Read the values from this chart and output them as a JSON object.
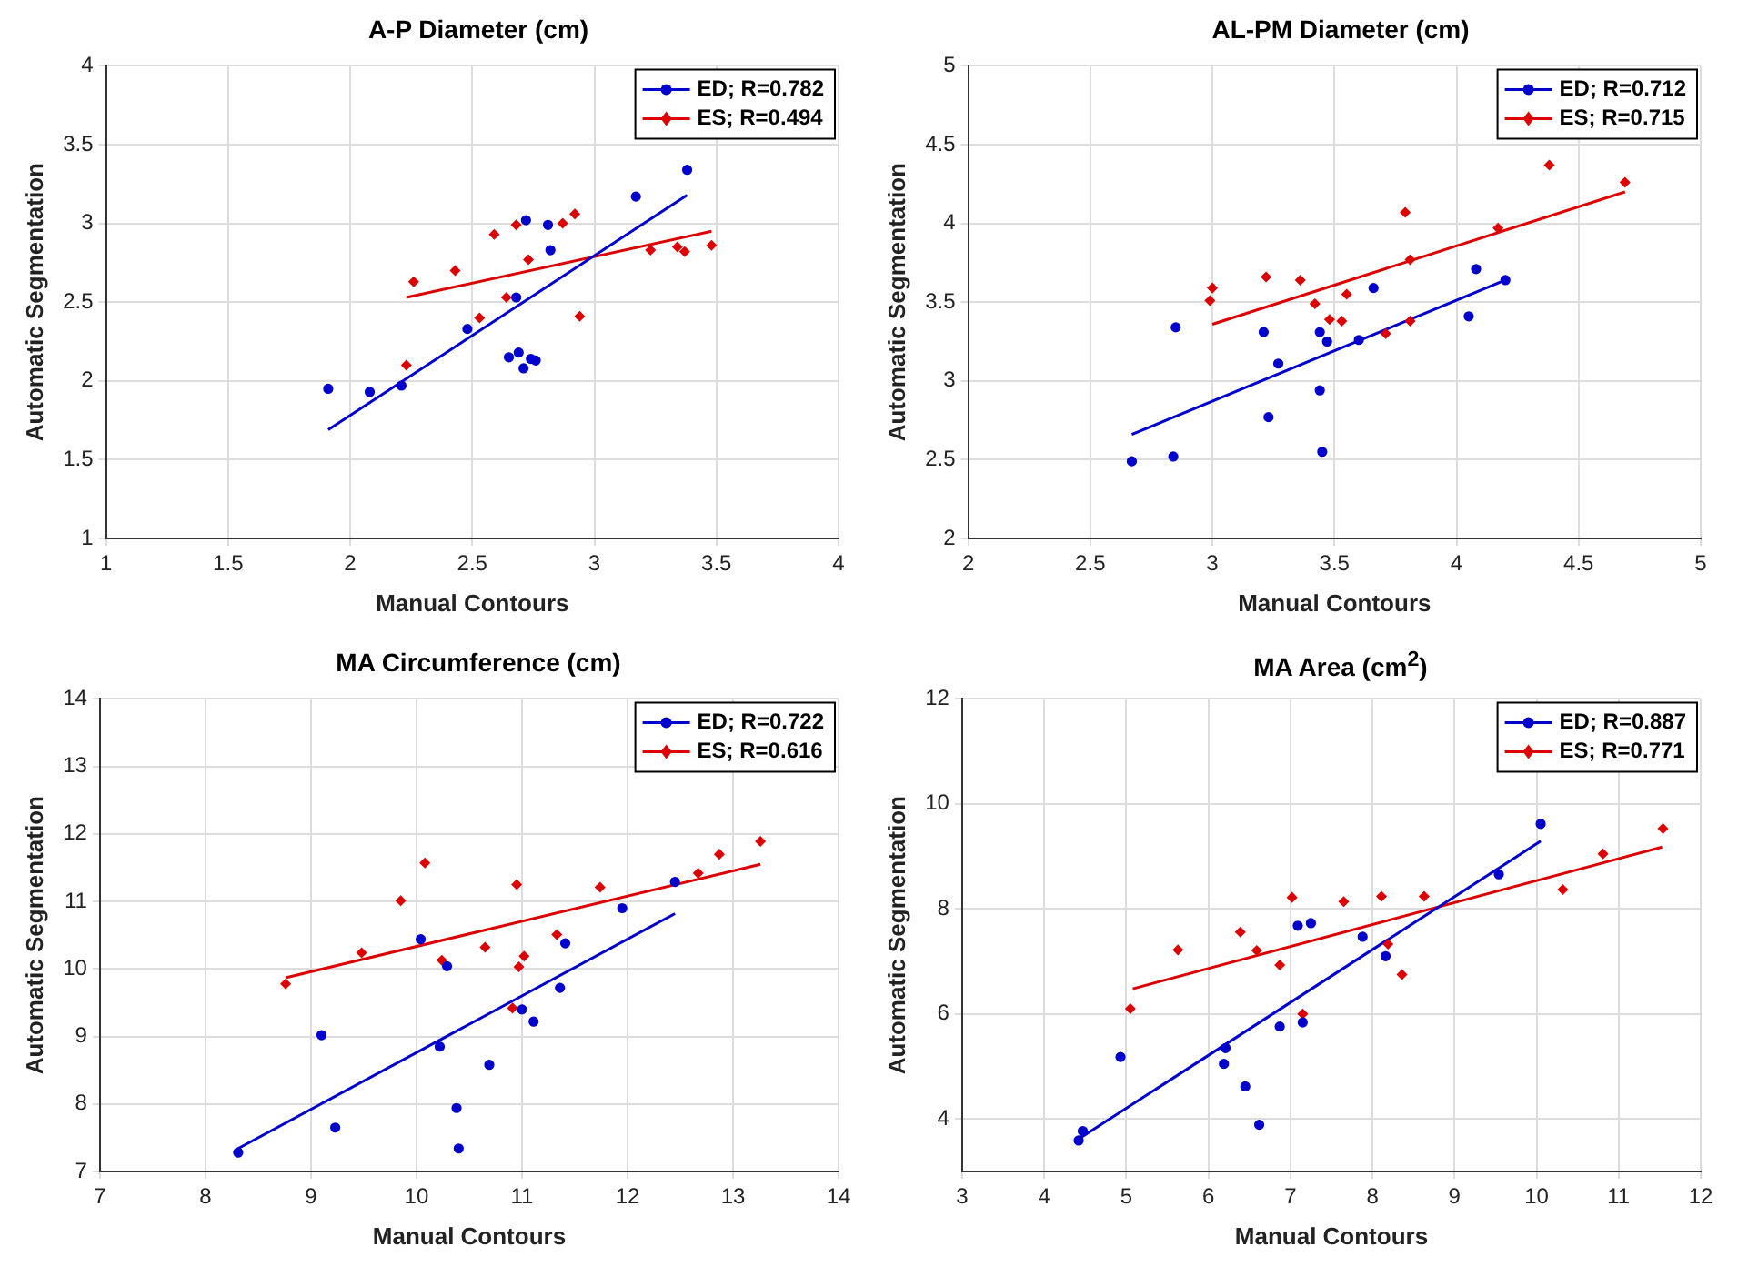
{
  "chart_data": [
    {
      "type": "scatter",
      "title": "A-P Diameter (cm)",
      "xlabel": "Manual Contours",
      "ylabel": "Automatic Segmentation",
      "xlim": [
        1,
        4
      ],
      "ylim": [
        1,
        4
      ],
      "xticks": [
        1,
        1.5,
        2,
        2.5,
        3,
        3.5,
        4
      ],
      "yticks": [
        1,
        1.5,
        2,
        2.5,
        3,
        3.5,
        4
      ],
      "grid": true,
      "legend": "top right",
      "series": [
        {
          "name": "ED; R=0.782",
          "color": "#0000cc",
          "marker": "circle",
          "x": [
            1.91,
            2.08,
            2.21,
            2.48,
            2.68,
            2.65,
            2.69,
            2.71,
            2.74,
            2.76,
            2.72,
            2.81,
            2.82,
            3.17,
            3.38
          ],
          "values": [
            1.95,
            1.93,
            1.97,
            2.33,
            2.53,
            2.15,
            2.18,
            2.08,
            2.14,
            2.13,
            3.02,
            2.99,
            2.83,
            3.17,
            3.34
          ]
        },
        {
          "name": "ES; R=0.494",
          "color": "#dd0000",
          "marker": "diamond",
          "x": [
            2.23,
            2.26,
            2.43,
            2.53,
            2.59,
            2.64,
            2.68,
            2.73,
            2.87,
            2.92,
            2.94,
            3.23,
            3.34,
            3.37,
            3.48
          ],
          "values": [
            2.1,
            2.63,
            2.7,
            2.4,
            2.93,
            2.53,
            2.99,
            2.77,
            3.0,
            3.06,
            2.41,
            2.83,
            2.85,
            2.82,
            2.86
          ]
        },
        {
          "type": "line",
          "color": "#0000cc",
          "marker": "none",
          "x": [
            1.91,
            3.38
          ],
          "values": [
            1.69,
            3.18
          ]
        },
        {
          "type": "line",
          "color": "#dd0000",
          "marker": "none",
          "x": [
            2.23,
            3.48
          ],
          "values": [
            2.53,
            2.95
          ]
        }
      ]
    },
    {
      "type": "scatter",
      "title": "AL-PM Diameter (cm)",
      "xlabel": "Manual Contours",
      "ylabel": "Automatic Segmentation",
      "xlim": [
        2,
        5
      ],
      "ylim": [
        2,
        5
      ],
      "xticks": [
        2,
        2.5,
        3,
        3.5,
        4,
        4.5,
        5
      ],
      "yticks": [
        2,
        2.5,
        3,
        3.5,
        4,
        4.5,
        5
      ],
      "grid": true,
      "legend": "top right",
      "series": [
        {
          "name": "ED; R=0.712",
          "color": "#0000cc",
          "marker": "circle",
          "x": [
            2.67,
            2.84,
            2.85,
            3.21,
            3.27,
            3.23,
            3.44,
            3.45,
            3.44,
            3.47,
            3.6,
            3.66,
            4.05,
            4.08,
            4.2
          ],
          "values": [
            2.49,
            2.52,
            3.34,
            3.31,
            3.11,
            2.77,
            2.94,
            2.55,
            3.31,
            3.25,
            3.26,
            3.59,
            3.41,
            3.71,
            3.64
          ]
        },
        {
          "name": "ES; R=0.715",
          "color": "#dd0000",
          "marker": "diamond",
          "x": [
            2.99,
            3.0,
            3.22,
            3.36,
            3.42,
            3.48,
            3.53,
            3.55,
            3.71,
            3.79,
            3.81,
            3.81,
            4.17,
            4.38,
            4.69
          ],
          "values": [
            3.51,
            3.59,
            3.66,
            3.64,
            3.49,
            3.39,
            3.38,
            3.55,
            3.3,
            4.07,
            3.77,
            3.38,
            3.97,
            4.37,
            4.26
          ]
        },
        {
          "type": "line",
          "color": "#0000cc",
          "marker": "none",
          "x": [
            2.67,
            4.2
          ],
          "values": [
            2.66,
            3.64
          ]
        },
        {
          "type": "line",
          "color": "#dd0000",
          "marker": "none",
          "x": [
            3.0,
            4.69
          ],
          "values": [
            3.36,
            4.2
          ]
        }
      ]
    },
    {
      "type": "scatter",
      "title": "MA Circumference (cm)",
      "xlabel": "Manual Contours",
      "ylabel": "Automatic Segmentation",
      "xlim": [
        7,
        14
      ],
      "ylim": [
        7,
        14
      ],
      "xticks": [
        7,
        8,
        9,
        10,
        11,
        12,
        13,
        14
      ],
      "yticks": [
        7,
        8,
        9,
        10,
        11,
        12,
        13,
        14
      ],
      "grid": true,
      "legend": "top right",
      "series": [
        {
          "name": "ED; R=0.722",
          "color": "#0000cc",
          "marker": "circle",
          "x": [
            8.31,
            9.1,
            9.23,
            10.04,
            10.22,
            10.29,
            10.38,
            10.4,
            10.69,
            11.0,
            11.11,
            11.36,
            11.41,
            11.95,
            12.45
          ],
          "values": [
            7.28,
            9.02,
            7.65,
            10.44,
            8.85,
            10.04,
            7.94,
            7.34,
            8.58,
            9.4,
            9.22,
            9.72,
            10.38,
            10.9,
            11.29
          ]
        },
        {
          "name": "ES; R=0.616",
          "color": "#dd0000",
          "marker": "diamond",
          "x": [
            8.76,
            9.48,
            9.85,
            10.08,
            10.24,
            10.65,
            10.91,
            10.95,
            10.97,
            11.02,
            11.33,
            11.74,
            12.67,
            12.87,
            13.26
          ],
          "values": [
            9.78,
            10.24,
            11.01,
            11.57,
            10.13,
            10.32,
            9.42,
            11.25,
            10.03,
            10.19,
            10.51,
            11.21,
            11.42,
            11.7,
            11.89
          ]
        },
        {
          "type": "line",
          "color": "#0000cc",
          "marker": "none",
          "x": [
            8.31,
            12.45
          ],
          "values": [
            7.34,
            10.82
          ]
        },
        {
          "type": "line",
          "color": "#dd0000",
          "marker": "none",
          "x": [
            8.76,
            13.26
          ],
          "values": [
            9.87,
            11.55
          ]
        }
      ]
    },
    {
      "type": "scatter",
      "title": "MA Area (cm$^{2}$)",
      "xlabel": "Manual Contours",
      "ylabel": "Automatic Segmentation",
      "xlim": [
        3,
        12
      ],
      "ylim": [
        3,
        12
      ],
      "xticks": [
        3,
        4,
        5,
        6,
        7,
        8,
        9,
        10,
        11,
        12
      ],
      "yticks": [
        4,
        6,
        8,
        10,
        12
      ],
      "grid": true,
      "legend": "top right",
      "series": [
        {
          "name": "ED; R=0.887",
          "color": "#0000cc",
          "marker": "circle",
          "x": [
            4.42,
            4.47,
            4.93,
            6.21,
            6.19,
            6.45,
            6.62,
            6.87,
            7.09,
            7.15,
            7.25,
            7.88,
            8.16,
            9.54,
            10.05
          ],
          "values": [
            3.59,
            3.77,
            5.18,
            5.35,
            5.05,
            4.62,
            3.89,
            5.76,
            7.68,
            5.84,
            7.73,
            7.47,
            7.1,
            8.66,
            9.62
          ]
        },
        {
          "name": "ES; R=0.771",
          "color": "#dd0000",
          "marker": "diamond",
          "x": [
            5.05,
            5.63,
            6.39,
            6.59,
            6.87,
            7.02,
            7.15,
            7.65,
            8.11,
            8.19,
            8.36,
            8.63,
            10.32,
            10.81,
            11.54
          ],
          "values": [
            6.1,
            7.22,
            7.56,
            7.21,
            6.93,
            8.22,
            6.0,
            8.14,
            8.24,
            7.33,
            6.75,
            8.24,
            8.37,
            9.05,
            9.53
          ]
        },
        {
          "type": "line",
          "color": "#0000cc",
          "marker": "none",
          "x": [
            4.42,
            10.05
          ],
          "values": [
            3.62,
            9.29
          ]
        },
        {
          "type": "line",
          "color": "#dd0000",
          "marker": "none",
          "x": [
            5.08,
            11.53
          ],
          "values": [
            6.48,
            9.18
          ]
        }
      ]
    }
  ]
}
